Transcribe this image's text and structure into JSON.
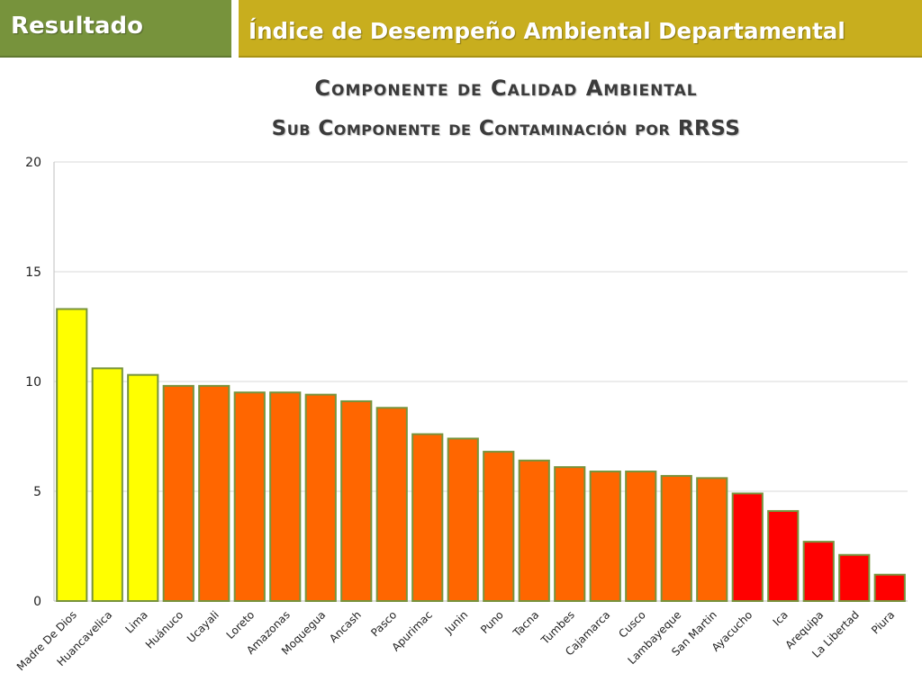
{
  "header": {
    "left_label": "Resultado",
    "right_label": "Índice de Desempeño Ambiental Departamental",
    "left_color": "#77933c",
    "right_color": "#c8ae1e"
  },
  "titles": {
    "line1": "Componente de Calidad Ambiental",
    "line2": "Sub Componente de Contaminación por RRSS"
  },
  "chart_data": {
    "type": "bar",
    "title": "Componente de Calidad Ambiental",
    "subtitle": "Sub Componente de Contaminación por RRSS",
    "xlabel": "",
    "ylabel": "",
    "ylim": [
      0,
      20
    ],
    "yticks": [
      0,
      5,
      10,
      15,
      20
    ],
    "grid": true,
    "legend": "none",
    "categories": [
      "Madre De Dios",
      "Huancavelica",
      "Lima",
      "Huánuco",
      "Ucayali",
      "Loreto",
      "Amazonas",
      "Moquegua",
      "Ancash",
      "Pasco",
      "Apurimac",
      "Junin",
      "Puno",
      "Tacna",
      "Tumbes",
      "Cajamarca",
      "Cusco",
      "Lambayeque",
      "San Martin",
      "Ayacucho",
      "Ica",
      "Arequipa",
      "La Libertad",
      "Piura"
    ],
    "values": [
      13.3,
      10.6,
      10.3,
      9.8,
      9.8,
      9.5,
      9.5,
      9.4,
      9.1,
      8.8,
      7.6,
      7.4,
      6.8,
      6.4,
      6.1,
      5.9,
      5.9,
      5.7,
      5.6,
      4.9,
      4.1,
      2.7,
      2.1,
      1.2
    ],
    "bar_fill": [
      "#ffff00",
      "#ffff00",
      "#ffff00",
      "#ff6600",
      "#ff6600",
      "#ff6600",
      "#ff6600",
      "#ff6600",
      "#ff6600",
      "#ff6600",
      "#ff6600",
      "#ff6600",
      "#ff6600",
      "#ff6600",
      "#ff6600",
      "#ff6600",
      "#ff6600",
      "#ff6600",
      "#ff6600",
      "#ff0000",
      "#ff0000",
      "#ff0000",
      "#ff0000",
      "#ff0000"
    ],
    "bar_border": "#77933c"
  }
}
